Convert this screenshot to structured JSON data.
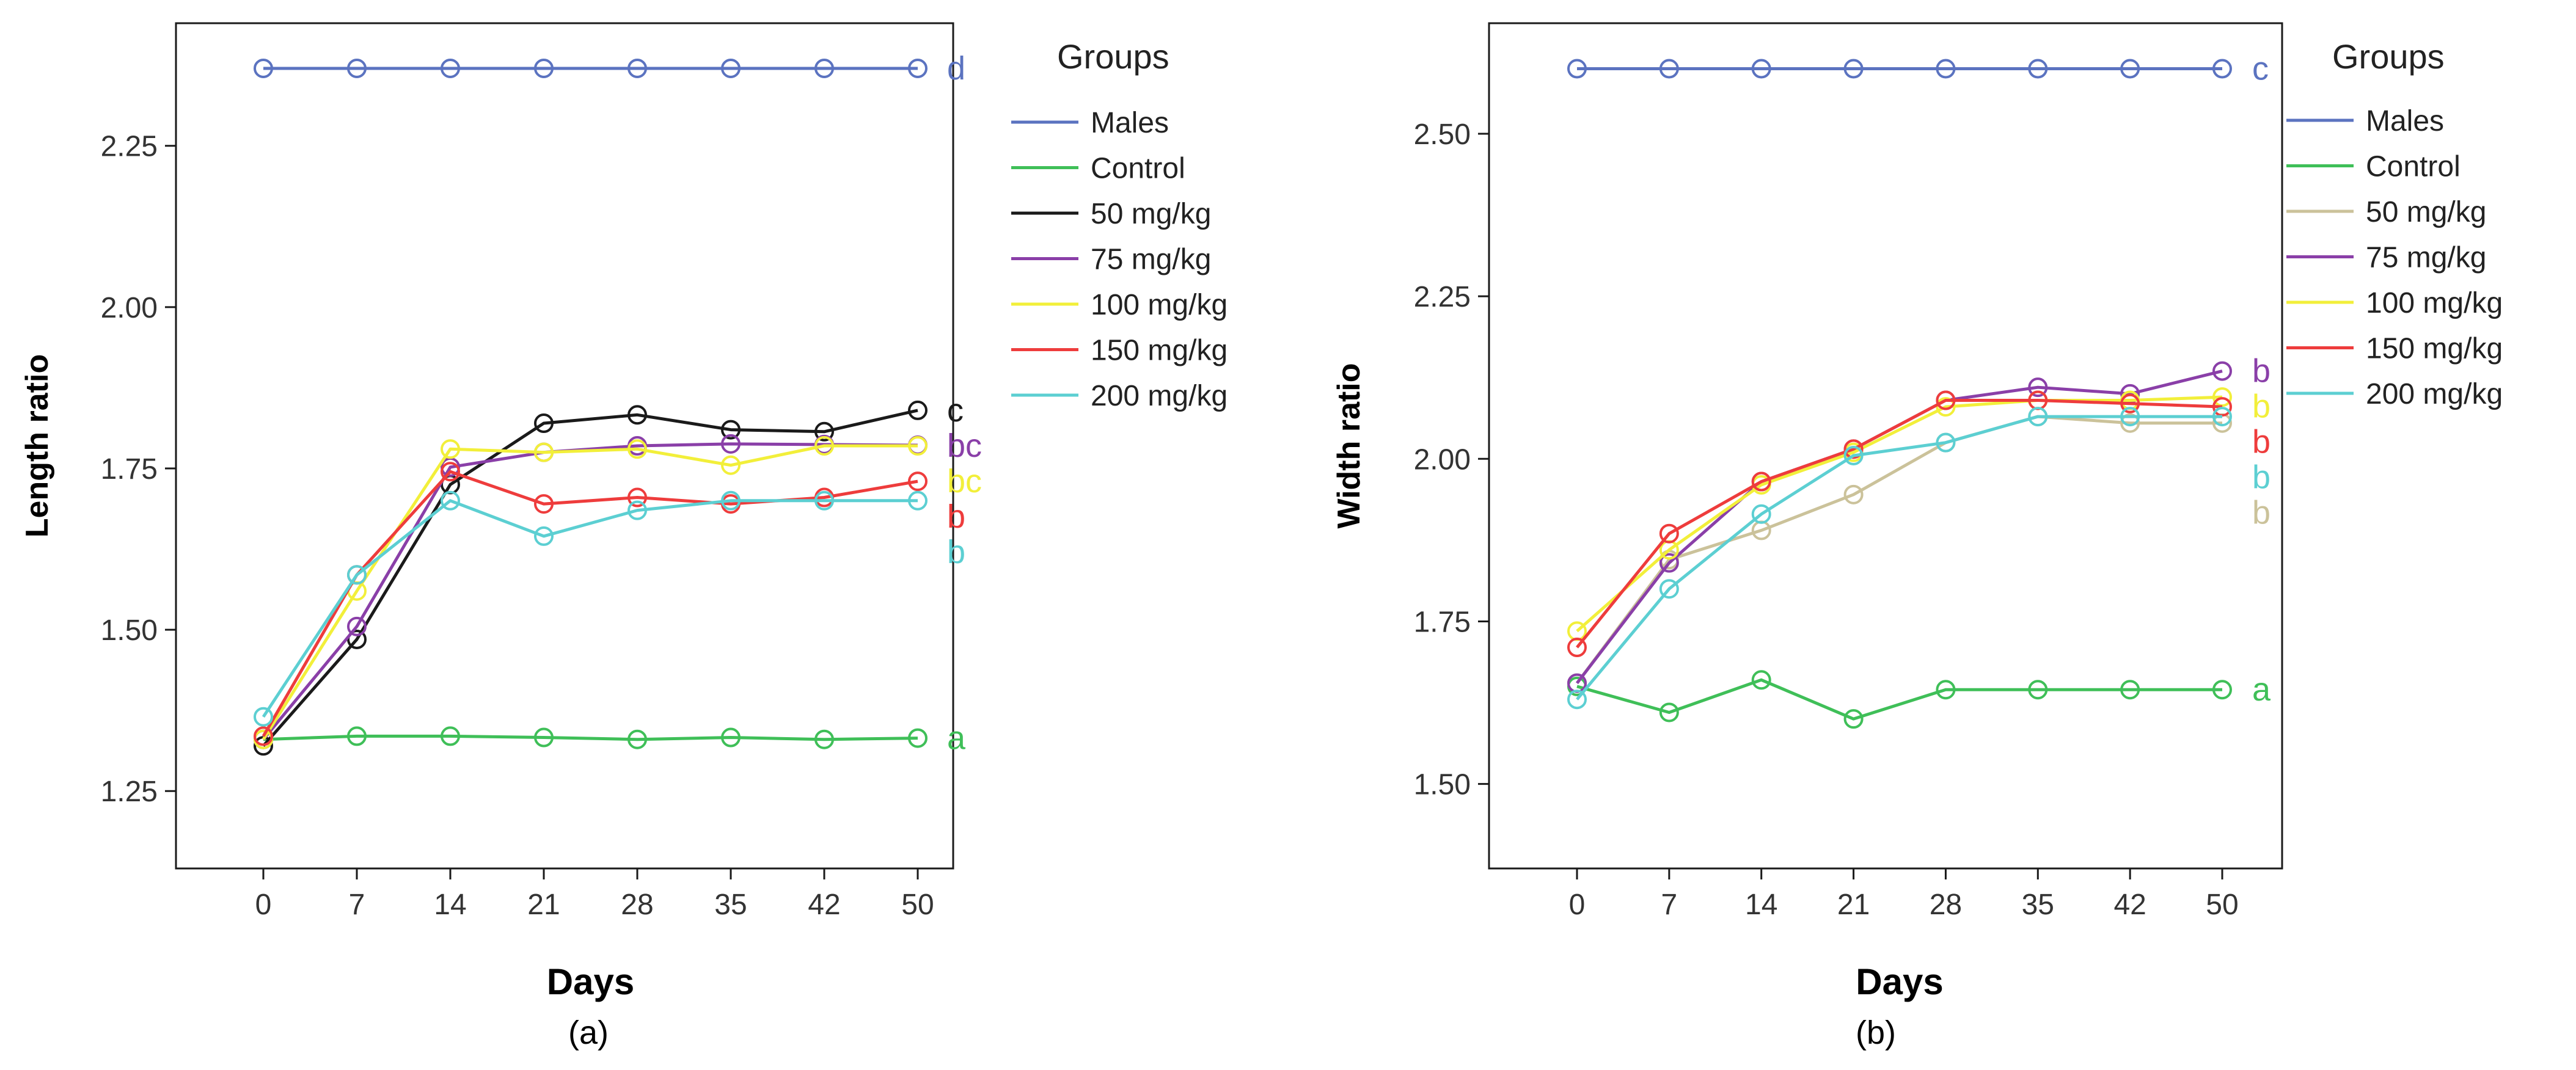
{
  "colors": {
    "males": "#5b73c0",
    "control": "#3fbf58",
    "mg50_a": "#1a1a1a",
    "mg50_b": "#cbc29a",
    "mg75": "#8a3fa8",
    "mg100": "#f2ef3a",
    "mg150": "#ee3c3c",
    "mg200": "#5ccfd2"
  },
  "chart_data": [
    {
      "type": "line",
      "panel_label": "(a)",
      "xlabel": "Days",
      "ylabel": "Length ratio",
      "categories": [
        "0",
        "7",
        "14",
        "21",
        "28",
        "35",
        "42",
        "50"
      ],
      "ylim": [
        1.13,
        2.44
      ],
      "yticks": [
        "1.25",
        "1.50",
        "1.75",
        "2.00",
        "2.25"
      ],
      "legend_title": "Groups",
      "legend_position": "right",
      "series": [
        {
          "name": "Males",
          "color": "#5b73c0",
          "values": [
            2.37,
            2.37,
            2.37,
            2.37,
            2.37,
            2.37,
            2.37,
            2.37
          ],
          "letter": "d"
        },
        {
          "name": "Control",
          "color": "#3fbf58",
          "values": [
            1.33,
            1.335,
            1.335,
            1.333,
            1.33,
            1.333,
            1.33,
            1.332
          ],
          "letter": "a"
        },
        {
          "name": "50 mg/kg",
          "color": "#1a1a1a",
          "values": [
            1.32,
            1.485,
            1.725,
            1.82,
            1.833,
            1.81,
            1.807,
            1.84
          ],
          "letter": "c"
        },
        {
          "name": "75 mg/kg",
          "color": "#8a3fa8",
          "values": [
            1.33,
            1.505,
            1.752,
            1.775,
            1.785,
            1.788,
            1.787,
            1.786
          ],
          "letter": "bc"
        },
        {
          "name": "100 mg/kg",
          "color": "#f2ef3a",
          "values": [
            1.33,
            1.56,
            1.78,
            1.775,
            1.78,
            1.755,
            1.785,
            1.785
          ],
          "letter": "bc"
        },
        {
          "name": "150 mg/kg",
          "color": "#ee3c3c",
          "values": [
            1.335,
            1.585,
            1.745,
            1.695,
            1.705,
            1.695,
            1.705,
            1.73
          ],
          "letter": "b"
        },
        {
          "name": "200 mg/kg",
          "color": "#5ccfd2",
          "values": [
            1.365,
            1.585,
            1.7,
            1.645,
            1.685,
            1.7,
            1.7,
            1.7
          ],
          "letter": "b"
        }
      ]
    },
    {
      "type": "line",
      "panel_label": "(b)",
      "xlabel": "Days",
      "ylabel": "Width ratio",
      "categories": [
        "0",
        "7",
        "14",
        "21",
        "28",
        "35",
        "42",
        "50"
      ],
      "ylim": [
        1.37,
        2.67
      ],
      "yticks": [
        "1.50",
        "1.75",
        "2.00",
        "2.25",
        "2.50"
      ],
      "legend_title": "Groups",
      "legend_position": "right",
      "series": [
        {
          "name": "Males",
          "color": "#5b73c0",
          "values": [
            2.6,
            2.6,
            2.6,
            2.6,
            2.6,
            2.6,
            2.6,
            2.6
          ],
          "letter": "c"
        },
        {
          "name": "Control",
          "color": "#3fbf58",
          "values": [
            1.65,
            1.61,
            1.66,
            1.6,
            1.645,
            1.645,
            1.645,
            1.645
          ],
          "letter": "a"
        },
        {
          "name": "50 mg/kg",
          "color": "#cbc29a",
          "values": [
            1.655,
            1.845,
            1.89,
            1.945,
            2.025,
            2.065,
            2.055,
            2.055
          ],
          "letter": "b"
        },
        {
          "name": "75 mg/kg",
          "color": "#8a3fa8",
          "values": [
            1.655,
            1.84,
            1.965,
            2.015,
            2.09,
            2.11,
            2.1,
            2.135
          ],
          "letter": "b"
        },
        {
          "name": "100 mg/kg",
          "color": "#f2ef3a",
          "values": [
            1.735,
            1.86,
            1.96,
            2.01,
            2.08,
            2.09,
            2.09,
            2.095
          ],
          "letter": "b"
        },
        {
          "name": "150 mg/kg",
          "color": "#ee3c3c",
          "values": [
            1.71,
            1.885,
            1.965,
            2.015,
            2.09,
            2.09,
            2.085,
            2.08
          ],
          "letter": "b"
        },
        {
          "name": "200 mg/kg",
          "color": "#5ccfd2",
          "values": [
            1.63,
            1.8,
            1.915,
            2.005,
            2.025,
            2.065,
            2.065,
            2.065
          ],
          "letter": "b"
        }
      ]
    }
  ]
}
